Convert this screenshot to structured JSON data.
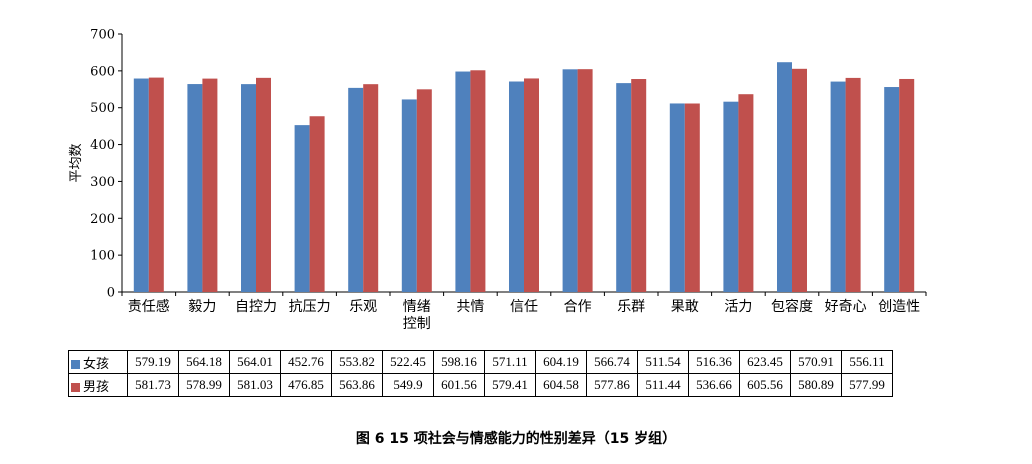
{
  "caption": "图 6   15 项社会与情感能力的性别差异（15 岁组）",
  "colors": {
    "female": "#4f81bd",
    "male": "#c0504d"
  },
  "chart_data": {
    "type": "bar",
    "ylabel": "平均数",
    "ylim": [
      0,
      700
    ],
    "yticks": [
      0,
      100,
      200,
      300,
      400,
      500,
      600,
      700
    ],
    "grid": false,
    "legend": "table",
    "categories": [
      "责任感",
      "毅力",
      "自控力",
      "抗压力",
      "乐观",
      "情绪控制",
      "共情",
      "信任",
      "合作",
      "乐群",
      "果敢",
      "活力",
      "包容度",
      "好奇心",
      "创造性"
    ],
    "series": [
      {
        "name": "女孩",
        "values": [
          579.19,
          564.18,
          564.01,
          452.76,
          553.82,
          522.45,
          598.16,
          571.11,
          604.19,
          566.74,
          511.54,
          516.36,
          623.45,
          570.91,
          556.11
        ]
      },
      {
        "name": "男孩",
        "values": [
          581.73,
          578.99,
          581.03,
          476.85,
          563.86,
          549.9,
          601.56,
          579.41,
          604.58,
          577.86,
          511.44,
          536.66,
          605.56,
          580.89,
          577.99
        ]
      }
    ],
    "table": {
      "rows": [
        [
          "579.19",
          "564.18",
          "564.01",
          "452.76",
          "553.82",
          "522.45",
          "598.16",
          "571.11",
          "604.19",
          "566.74",
          "511.54",
          "516.36",
          "623.45",
          "570.91",
          "556.11"
        ],
        [
          "581.73",
          "578.99",
          "581.03",
          "476.85",
          "563.86",
          "549.9",
          "601.56",
          "579.41",
          "604.58",
          "577.86",
          "511.44",
          "536.66",
          "605.56",
          "580.89",
          "577.99"
        ]
      ]
    }
  }
}
